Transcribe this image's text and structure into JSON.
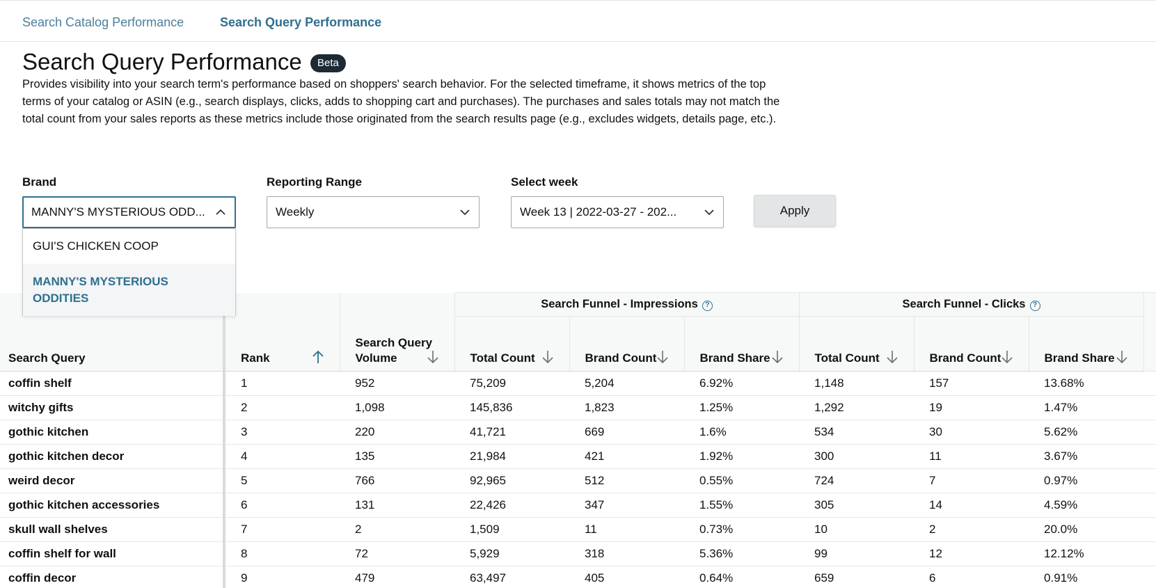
{
  "nav": {
    "tabs": [
      {
        "label": "Search Catalog Performance",
        "active": false
      },
      {
        "label": "Search Query Performance",
        "active": true
      }
    ]
  },
  "page": {
    "title": "Search Query Performance",
    "badge": "Beta",
    "description": "Provides visibility into your search term's performance based on shoppers' search behavior. For the selected timeframe, it shows metrics of the top terms of your catalog or ASIN (e.g., search displays, clicks, adds to shopping cart and purchases). The purchases and sales totals may not match the total count from your sales reports as these metrics include those originated from the search results page (e.g., excludes widgets, details page, etc.)."
  },
  "filters": {
    "brand": {
      "label": "Brand",
      "value": "MANNY'S MYSTERIOUS ODD...",
      "options": [
        "GUI'S CHICKEN COOP",
        "MANNY'S MYSTERIOUS ODDITIES"
      ],
      "selected_index": 1
    },
    "range": {
      "label": "Reporting Range",
      "value": "Weekly"
    },
    "week": {
      "label": "Select week",
      "value": "Week 13 | 2022-03-27 - 202..."
    },
    "apply_label": "Apply"
  },
  "table": {
    "groups": {
      "impressions": "Search Funnel - Impressions",
      "clicks": "Search Funnel - Clicks"
    },
    "headers": {
      "query": "Search Query",
      "rank": "Rank",
      "volume": "Search Query Volume",
      "imp_total": "Total Count",
      "imp_brand": "Brand Count",
      "imp_share": "Brand Share",
      "clk_total": "Total Count",
      "clk_brand": "Brand Count",
      "clk_share": "Brand Share"
    },
    "rows": [
      {
        "query": "coffin shelf",
        "rank": "1",
        "volume": "952",
        "imp_total": "75,209",
        "imp_brand": "5,204",
        "imp_share": "6.92%",
        "clk_total": "1,148",
        "clk_brand": "157",
        "clk_share": "13.68%"
      },
      {
        "query": "witchy gifts",
        "rank": "2",
        "volume": "1,098",
        "imp_total": "145,836",
        "imp_brand": "1,823",
        "imp_share": "1.25%",
        "clk_total": "1,292",
        "clk_brand": "19",
        "clk_share": "1.47%"
      },
      {
        "query": "gothic kitchen",
        "rank": "3",
        "volume": "220",
        "imp_total": "41,721",
        "imp_brand": "669",
        "imp_share": "1.6%",
        "clk_total": "534",
        "clk_brand": "30",
        "clk_share": "5.62%"
      },
      {
        "query": "gothic kitchen decor",
        "rank": "4",
        "volume": "135",
        "imp_total": "21,984",
        "imp_brand": "421",
        "imp_share": "1.92%",
        "clk_total": "300",
        "clk_brand": "11",
        "clk_share": "3.67%"
      },
      {
        "query": "weird decor",
        "rank": "5",
        "volume": "766",
        "imp_total": "92,965",
        "imp_brand": "512",
        "imp_share": "0.55%",
        "clk_total": "724",
        "clk_brand": "7",
        "clk_share": "0.97%"
      },
      {
        "query": "gothic kitchen accessories",
        "rank": "6",
        "volume": "131",
        "imp_total": "22,426",
        "imp_brand": "347",
        "imp_share": "1.55%",
        "clk_total": "305",
        "clk_brand": "14",
        "clk_share": "4.59%"
      },
      {
        "query": "skull wall shelves",
        "rank": "7",
        "volume": "2",
        "imp_total": "1,509",
        "imp_brand": "11",
        "imp_share": "0.73%",
        "clk_total": "10",
        "clk_brand": "2",
        "clk_share": "20.0%"
      },
      {
        "query": "coffin shelf for wall",
        "rank": "8",
        "volume": "72",
        "imp_total": "5,929",
        "imp_brand": "318",
        "imp_share": "5.36%",
        "clk_total": "99",
        "clk_brand": "12",
        "clk_share": "12.12%"
      },
      {
        "query": "coffin decor",
        "rank": "9",
        "volume": "479",
        "imp_total": "63,497",
        "imp_brand": "405",
        "imp_share": "0.64%",
        "clk_total": "659",
        "clk_brand": "6",
        "clk_share": "0.91%"
      }
    ]
  },
  "colors": {
    "accent": "#2f6f8f",
    "badge_bg": "#1c2a36",
    "header_bg": "#f7f8f8"
  }
}
